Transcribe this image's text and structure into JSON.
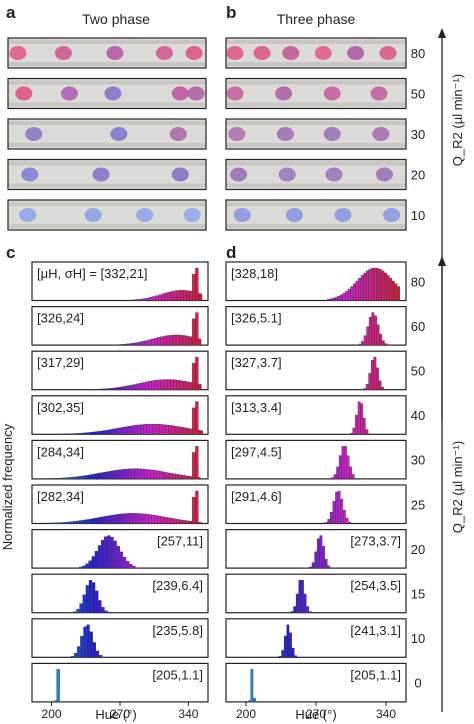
{
  "panel_a": {
    "letter": "a",
    "title": "Two phase"
  },
  "panel_b": {
    "letter": "b",
    "title": "Three phase"
  },
  "panel_c": {
    "letter": "c"
  },
  "panel_d": {
    "letter": "d"
  },
  "top_rows": {
    "flow_values": [
      "80",
      "50",
      "30",
      "20",
      "10"
    ],
    "two_phase": [
      {
        "droplets": [
          {
            "x": 0.05,
            "color": "#e25a8a"
          },
          {
            "x": 0.28,
            "color": "#d05a95"
          },
          {
            "x": 0.54,
            "color": "#b85aa8"
          },
          {
            "x": 0.79,
            "color": "#d45a90"
          },
          {
            "x": 0.94,
            "color": "#e05585"
          }
        ]
      },
      {
        "droplets": [
          {
            "x": 0.08,
            "color": "#e05585"
          },
          {
            "x": 0.31,
            "color": "#b060b0"
          },
          {
            "x": 0.53,
            "color": "#8a70c8"
          },
          {
            "x": 0.87,
            "color": "#c058a0"
          },
          {
            "x": 0.95,
            "color": "#b060a8"
          }
        ]
      },
      {
        "droplets": [
          {
            "x": 0.13,
            "color": "#8d78c4"
          },
          {
            "x": 0.56,
            "color": "#8078d0"
          },
          {
            "x": 0.86,
            "color": "#b06aa8"
          }
        ]
      },
      {
        "droplets": [
          {
            "x": 0.11,
            "color": "#7d82d8"
          },
          {
            "x": 0.47,
            "color": "#8a74c8"
          },
          {
            "x": 0.87,
            "color": "#8a70c4"
          }
        ]
      },
      {
        "droplets": [
          {
            "x": 0.1,
            "color": "#8ea8e8"
          },
          {
            "x": 0.43,
            "color": "#8aa2e6"
          },
          {
            "x": 0.69,
            "color": "#8ea6ea"
          },
          {
            "x": 0.93,
            "color": "#90a8ea"
          }
        ]
      }
    ],
    "three_phase": [
      {
        "droplets": [
          {
            "x": 0.05,
            "color": "#e05a8a"
          },
          {
            "x": 0.2,
            "color": "#d85a8a"
          },
          {
            "x": 0.36,
            "color": "#c55a98"
          },
          {
            "x": 0.54,
            "color": "#e0608a"
          },
          {
            "x": 0.72,
            "color": "#b05aa8"
          },
          {
            "x": 0.9,
            "color": "#d85a8c"
          }
        ]
      },
      {
        "droplets": [
          {
            "x": 0.05,
            "color": "#c862a0"
          },
          {
            "x": 0.32,
            "color": "#b060a8"
          },
          {
            "x": 0.59,
            "color": "#c4609c"
          },
          {
            "x": 0.85,
            "color": "#c0609c"
          }
        ]
      },
      {
        "droplets": [
          {
            "x": 0.06,
            "color": "#b072b0"
          },
          {
            "x": 0.33,
            "color": "#a070b4"
          },
          {
            "x": 0.59,
            "color": "#9a74b8"
          },
          {
            "x": 0.86,
            "color": "#a670b0"
          }
        ]
      },
      {
        "droplets": [
          {
            "x": 0.07,
            "color": "#9872b8"
          },
          {
            "x": 0.34,
            "color": "#9a78c0"
          },
          {
            "x": 0.6,
            "color": "#9c74bc"
          },
          {
            "x": 0.88,
            "color": "#9a72b8"
          }
        ]
      },
      {
        "droplets": [
          {
            "x": 0.09,
            "color": "#8c96e0"
          },
          {
            "x": 0.38,
            "color": "#8a96e0"
          },
          {
            "x": 0.65,
            "color": "#8c98e2"
          },
          {
            "x": 0.92,
            "color": "#8e98e2"
          }
        ]
      }
    ]
  },
  "axis_labels": {
    "top_right": "Q_R2 (µl min⁻¹)",
    "bottom_right": "Q_R2 (µl min⁻¹)",
    "y_left": "Normalized frequency",
    "x_c": "Hue (°)",
    "x_d": "Hue (°)"
  },
  "chart_data": [
    {
      "type": "bar",
      "panel": "c",
      "xlabel": "Hue (°)",
      "ylabel": "Normalized frequency",
      "xlim": [
        180,
        360
      ],
      "xticks": [
        "200",
        "270",
        "340"
      ],
      "rows": [
        {
          "flow": "80",
          "label": "[μH, σH] = [332,21]",
          "label_pos": "left",
          "mean": 332,
          "sd": 21
        },
        {
          "flow": "60",
          "label": "[326,24]",
          "label_pos": "left",
          "mean": 326,
          "sd": 24
        },
        {
          "flow": "50",
          "label": "[317,29]",
          "label_pos": "left",
          "mean": 317,
          "sd": 29
        },
        {
          "flow": "40",
          "label": "[302,35]",
          "label_pos": "left",
          "mean": 302,
          "sd": 35
        },
        {
          "flow": "30",
          "label": "[284,34]",
          "label_pos": "left",
          "mean": 284,
          "sd": 34
        },
        {
          "flow": "25",
          "label": "[282,34]",
          "label_pos": "left",
          "mean": 282,
          "sd": 34
        },
        {
          "flow": "20",
          "label": "[257,11]",
          "label_pos": "right",
          "mean": 257,
          "sd": 11
        },
        {
          "flow": "15",
          "label": "[239,6.4]",
          "label_pos": "right",
          "mean": 239,
          "sd": 6.4
        },
        {
          "flow": "10",
          "label": "[235,5.8]",
          "label_pos": "right",
          "mean": 235,
          "sd": 5.8
        },
        {
          "flow": "0",
          "label": "[205,1.1]",
          "label_pos": "right",
          "mean": 205,
          "sd": 1.1
        }
      ]
    },
    {
      "type": "bar",
      "panel": "d",
      "xlabel": "Hue (°)",
      "ylabel": "Normalized frequency",
      "xlim": [
        180,
        360
      ],
      "xticks": [
        "200",
        "270",
        "340"
      ],
      "rows": [
        {
          "flow": "80",
          "label": "[328,18]",
          "label_pos": "left",
          "mean": 328,
          "sd": 18
        },
        {
          "flow": "60",
          "label": "[326,5.1]",
          "label_pos": "left",
          "mean": 326,
          "sd": 5.1
        },
        {
          "flow": "50",
          "label": "[327,3.7]",
          "label_pos": "left",
          "mean": 327,
          "sd": 3.7
        },
        {
          "flow": "40",
          "label": "[313,3.4]",
          "label_pos": "left",
          "mean": 313,
          "sd": 3.4
        },
        {
          "flow": "30",
          "label": "[297,4.5]",
          "label_pos": "left",
          "mean": 297,
          "sd": 4.5
        },
        {
          "flow": "25",
          "label": "[291,4.6]",
          "label_pos": "left",
          "mean": 291,
          "sd": 4.6
        },
        {
          "flow": "20",
          "label": "[273,3.7]",
          "label_pos": "right",
          "mean": 273,
          "sd": 3.7
        },
        {
          "flow": "15",
          "label": "[254,3.5]",
          "label_pos": "right",
          "mean": 254,
          "sd": 3.5
        },
        {
          "flow": "10",
          "label": "[241,3.1]",
          "label_pos": "right",
          "mean": 241,
          "sd": 3.1
        },
        {
          "flow": "0",
          "label": "[205,1.1]",
          "label_pos": "right",
          "mean": 205,
          "sd": 1.1
        }
      ]
    }
  ]
}
